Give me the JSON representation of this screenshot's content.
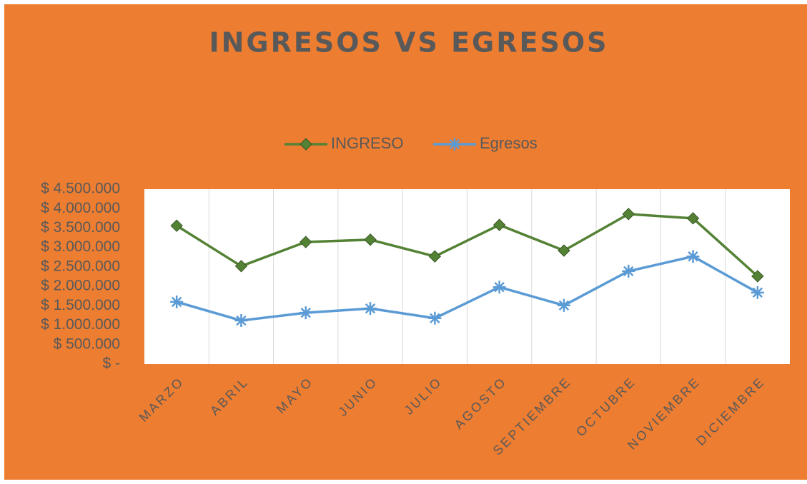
{
  "chart_data": {
    "type": "line",
    "title": "INGRESOS VS EGRESOS",
    "categories": [
      "MARZO",
      "ABRIL",
      "MAYO",
      "JUNIO",
      "JULIO",
      "AGOSTO",
      "SEPTIEMBRE",
      "OCTUBRE",
      "NOVIEMBRE",
      "DICIEMBRE"
    ],
    "series": [
      {
        "name": "INGRESO",
        "color": "#548235",
        "marker": "diamond",
        "values": [
          3560000,
          2520000,
          3140000,
          3200000,
          2770000,
          3580000,
          2920000,
          3860000,
          3750000,
          2260000
        ]
      },
      {
        "name": "Egresos",
        "color": "#5b9bd5",
        "marker": "asterisk",
        "values": [
          1600000,
          1120000,
          1320000,
          1430000,
          1180000,
          1980000,
          1510000,
          2390000,
          2770000,
          1840000
        ]
      }
    ],
    "ylim": [
      0,
      4500000
    ],
    "yticks": [
      {
        "value": 0,
        "label": "$ -"
      },
      {
        "value": 500000,
        "label": "$ 500.000"
      },
      {
        "value": 1000000,
        "label": "$ 1.000.000"
      },
      {
        "value": 1500000,
        "label": "$ 1.500.000"
      },
      {
        "value": 2000000,
        "label": "$ 2.000.000"
      },
      {
        "value": 2500000,
        "label": "$ 2.500.000"
      },
      {
        "value": 3000000,
        "label": "$ 3.000.000"
      },
      {
        "value": 3500000,
        "label": "$ 3.500.000"
      },
      {
        "value": 4000000,
        "label": "$ 4.000.000"
      },
      {
        "value": 4500000,
        "label": "$ 4.500.000"
      }
    ],
    "xgrid": true,
    "legend": "top"
  }
}
